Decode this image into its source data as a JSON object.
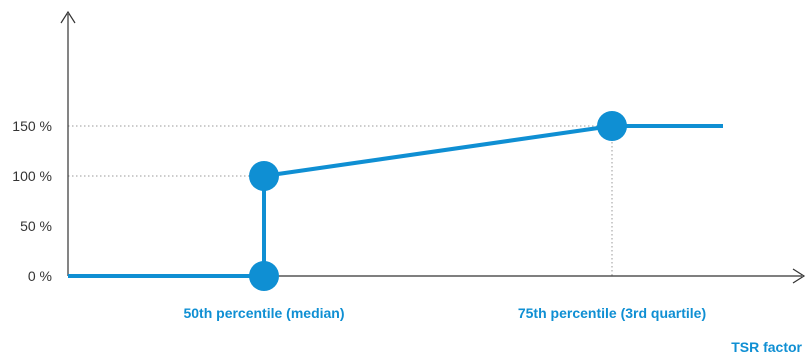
{
  "chart_data": {
    "type": "line",
    "title": "",
    "xlabel": "TSR factor",
    "ylabel": "",
    "y_ticks": [
      {
        "value": 0,
        "label": "0 %"
      },
      {
        "value": 50,
        "label": "50 %"
      },
      {
        "value": 100,
        "label": "100 %"
      },
      {
        "value": 150,
        "label": "150 %"
      }
    ],
    "ylim": [
      0,
      175
    ],
    "x_categories": [
      "50th percentile (median)",
      "75th percentile (3rd quartile)"
    ],
    "series": [
      {
        "color": "#0f8fd3",
        "points": [
          {
            "x": "start",
            "y": 0
          },
          {
            "x": "50th percentile (median)",
            "y": 0,
            "marker": true
          },
          {
            "x": "50th percentile (median)",
            "y": 100,
            "marker": true
          },
          {
            "x": "75th percentile (3rd quartile)",
            "y": 150,
            "marker": true
          },
          {
            "x": "end",
            "y": 150
          }
        ]
      }
    ],
    "reference_lines": [
      {
        "type": "horizontal",
        "y": 100
      },
      {
        "type": "horizontal",
        "y": 150
      },
      {
        "type": "vertical",
        "x": "75th percentile (3rd quartile)"
      }
    ],
    "grid": false,
    "colors": {
      "series": "#0f8fd3",
      "axis": "#333333",
      "reference": "#999999"
    }
  }
}
